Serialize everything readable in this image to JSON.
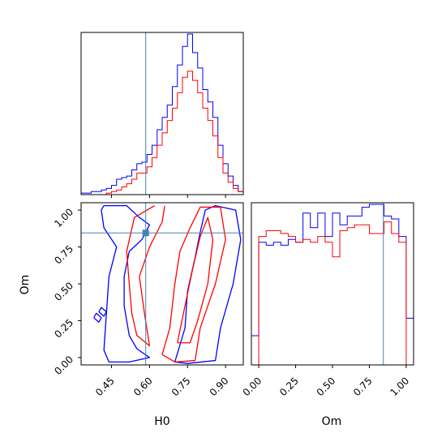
{
  "chart_data": {
    "type": "corner",
    "parameters": [
      "H0",
      "Om"
    ],
    "truth": {
      "H0": 0.585,
      "Om": 0.845
    },
    "colors": {
      "series_a": "#0000ff",
      "series_b": "#ff0000",
      "truth": "#4682b4"
    },
    "panels": [
      {
        "name": "H0-marginal",
        "type": "step-histogram",
        "xlim": [
          0.33,
          0.97
        ],
        "xticks": [
          0.45,
          0.6,
          0.75,
          0.9
        ],
        "bin_edges": [
          0.33,
          0.35,
          0.37,
          0.39,
          0.41,
          0.43,
          0.45,
          0.47,
          0.49,
          0.51,
          0.53,
          0.55,
          0.57,
          0.59,
          0.61,
          0.63,
          0.65,
          0.67,
          0.69,
          0.71,
          0.73,
          0.75,
          0.77,
          0.79,
          0.81,
          0.83,
          0.85,
          0.87,
          0.89,
          0.91,
          0.93,
          0.95,
          0.97
        ],
        "series": [
          {
            "color": "#0000ff",
            "values": [
              0.5,
              0.5,
              1,
              1,
              1.5,
              2,
              3,
              5,
              5.5,
              6,
              8,
              10,
              10.5,
              13,
              16,
              21,
              25,
              29,
              35,
              42,
              48,
              52,
              46,
              41,
              34,
              30,
              25,
              16,
              10,
              6,
              3,
              1
            ]
          },
          {
            "color": "#ff0000",
            "values": [
              0,
              0,
              0,
              0,
              0,
              0.5,
              1,
              1.5,
              2.5,
              3.5,
              5,
              7,
              7,
              9,
              12,
              16,
              20,
              24,
              28,
              33,
              38,
              40,
              37,
              33,
              28,
              24,
              19,
              12,
              7,
              4,
              2,
              1
            ]
          }
        ]
      },
      {
        "name": "H0-Om-joint",
        "type": "contour",
        "xlim": [
          0.33,
          0.97
        ],
        "ylim": [
          -0.05,
          1.05
        ],
        "xticks": [
          0.45,
          0.6,
          0.75,
          0.9
        ],
        "yticks": [
          0.0,
          0.25,
          0.5,
          0.75,
          1.0
        ],
        "xlabel": "H0",
        "ylabel": "Om",
        "series": [
          {
            "color": "#0000ff",
            "contours": [
              [
                [
                  0.42,
                  1.03
                ],
                [
                  0.51,
                  1.03
                ],
                [
                  0.56,
                  0.95
                ],
                [
                  0.6,
                  0.9
                ],
                [
                  0.57,
                  0.8
                ],
                [
                  0.52,
                  0.72
                ],
                [
                  0.5,
                  0.55
                ],
                [
                  0.5,
                  0.35
                ],
                [
                  0.52,
                  0.15
                ],
                [
                  0.55,
                  0.06
                ],
                [
                  0.6,
                  0.0
                ],
                [
                  0.52,
                  -0.03
                ],
                [
                  0.44,
                  -0.03
                ],
                [
                  0.42,
                  0.05
                ],
                [
                  0.43,
                  0.3
                ],
                [
                  0.44,
                  0.55
                ],
                [
                  0.47,
                  0.75
                ],
                [
                  0.42,
                  0.88
                ],
                [
                  0.41,
                  1.0
                ],
                [
                  0.42,
                  1.03
                ]
              ],
              [
                [
                  0.38,
                  0.27
                ],
                [
                  0.39,
                  0.3
                ],
                [
                  0.41,
                  0.27
                ],
                [
                  0.4,
                  0.24
                ],
                [
                  0.38,
                  0.27
                ]
              ],
              [
                [
                  0.4,
                  0.31
                ],
                [
                  0.41,
                  0.34
                ],
                [
                  0.43,
                  0.31
                ],
                [
                  0.42,
                  0.28
                ],
                [
                  0.4,
                  0.31
                ]
              ],
              [
                [
                  0.7,
                  -0.03
                ],
                [
                  0.74,
                  0.2
                ],
                [
                  0.75,
                  0.45
                ],
                [
                  0.78,
                  0.68
                ],
                [
                  0.8,
                  0.85
                ],
                [
                  0.82,
                  1.0
                ],
                [
                  0.86,
                  1.03
                ],
                [
                  0.94,
                  1.0
                ],
                [
                  0.96,
                  0.8
                ],
                [
                  0.93,
                  0.5
                ],
                [
                  0.88,
                  0.2
                ],
                [
                  0.86,
                  -0.02
                ],
                [
                  0.75,
                  -0.04
                ],
                [
                  0.7,
                  -0.03
                ]
              ]
            ]
          },
          {
            "color": "#ff0000",
            "contours": [
              [
                [
                  0.62,
                  1.03
                ],
                [
                  0.54,
                  0.95
                ],
                [
                  0.51,
                  0.72
                ],
                [
                  0.52,
                  0.5
                ],
                [
                  0.53,
                  0.3
                ],
                [
                  0.55,
                  0.15
                ],
                [
                  0.6,
                  0.08
                ],
                [
                  0.58,
                  0.3
                ],
                [
                  0.56,
                  0.55
                ],
                [
                  0.6,
                  0.75
                ],
                [
                  0.65,
                  0.92
                ],
                [
                  0.66,
                  1.03
                ]
              ],
              [
                [
                  0.65,
                  0.02
                ],
                [
                  0.68,
                  0.2
                ],
                [
                  0.7,
                  0.5
                ],
                [
                  0.72,
                  0.72
                ],
                [
                  0.76,
                  0.88
                ],
                [
                  0.8,
                  1.02
                ],
                [
                  0.88,
                  1.02
                ],
                [
                  0.9,
                  0.8
                ],
                [
                  0.86,
                  0.5
                ],
                [
                  0.8,
                  0.2
                ],
                [
                  0.78,
                  -0.02
                ],
                [
                  0.7,
                  -0.03
                ],
                [
                  0.65,
                  0.02
                ]
              ],
              [
                [
                  0.71,
                  0.1
                ],
                [
                  0.74,
                  0.35
                ],
                [
                  0.77,
                  0.6
                ],
                [
                  0.8,
                  0.82
                ],
                [
                  0.83,
                  0.95
                ],
                [
                  0.85,
                  0.8
                ],
                [
                  0.83,
                  0.5
                ],
                [
                  0.79,
                  0.25
                ],
                [
                  0.76,
                  0.1
                ],
                [
                  0.71,
                  0.1
                ]
              ]
            ]
          }
        ]
      },
      {
        "name": "Om-marginal",
        "type": "step-histogram",
        "xlim": [
          -0.05,
          1.05
        ],
        "xticks": [
          0.0,
          0.25,
          0.5,
          0.75,
          1.0
        ],
        "xlabel": "Om",
        "bin_edges": [
          -0.05,
          0.0,
          0.05,
          0.1,
          0.15,
          0.2,
          0.25,
          0.3,
          0.35,
          0.4,
          0.45,
          0.5,
          0.55,
          0.6,
          0.65,
          0.7,
          0.75,
          0.8,
          0.85,
          0.9,
          0.95,
          1.0,
          1.05
        ],
        "series": [
          {
            "color": "#0000ff",
            "values": [
              10,
              42,
              41,
              42,
              41,
              43,
              42,
              52,
              47,
              52,
              44,
              52,
              48,
              51,
              51,
              54,
              55,
              55,
              51,
              50,
              44,
              16
            ]
          },
          {
            "color": "#ff0000",
            "values": [
              0,
              44,
              46,
              46,
              45,
              44,
              42,
              43,
              42,
              44,
              42,
              37,
              46,
              47,
              48,
              48,
              45,
              45,
              49,
              45,
              42,
              0
            ]
          }
        ]
      }
    ]
  }
}
